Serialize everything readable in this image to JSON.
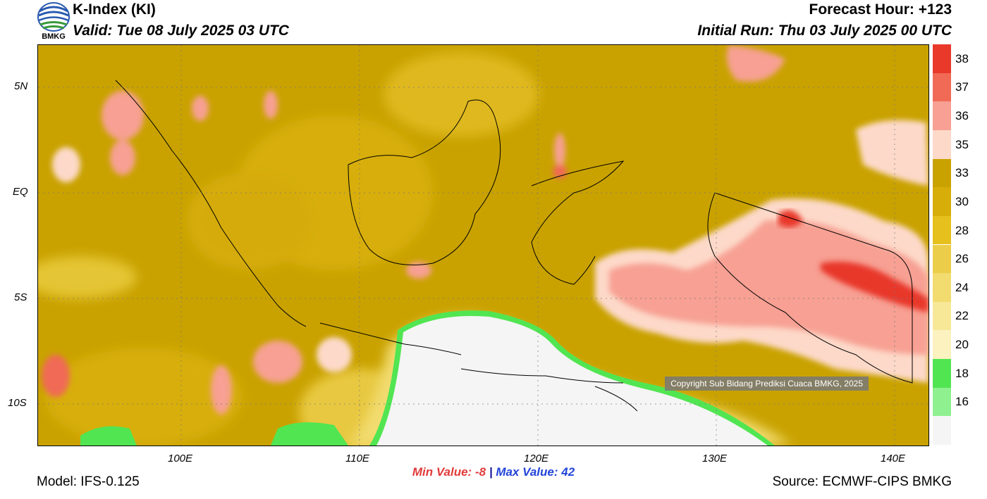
{
  "header": {
    "title": "K-Index (KI)",
    "valid": "Valid: Tue 08 July 2025 03 UTC",
    "forecast_hour": "Forecast Hour: +123",
    "initial_run": "Initial Run: Thu 03 July 2025 00 UTC"
  },
  "logo": {
    "text": "BMKG"
  },
  "axes": {
    "lat_labels": [
      "5N",
      "EQ",
      "5S",
      "10S"
    ],
    "lon_labels": [
      "100E",
      "110E",
      "120E",
      "130E",
      "140E"
    ]
  },
  "stats": {
    "min_label": "Min Value:",
    "min_value": "-8",
    "separator": "|",
    "max_label": "Max Value:",
    "max_value": "42"
  },
  "footer": {
    "model": "Model: IFS-0.125",
    "source": "Source: ECMWF-CIPS BMKG",
    "copyright": "Copyright Sub Bidang Prediksi Cuaca BMKG, 2025"
  },
  "colorbar": {
    "labels": [
      "38",
      "37",
      "36",
      "35",
      "33",
      "30",
      "28",
      "26",
      "24",
      "22",
      "20",
      "18",
      "16"
    ],
    "colors": [
      "#e8392b",
      "#f06a55",
      "#f7a093",
      "#fdd9c9",
      "#c9a200",
      "#d7ad0a",
      "#e6c01c",
      "#eccd4a",
      "#f2dc70",
      "#f7e898",
      "#fbf2c0",
      "#52e552",
      "#8ff08f",
      "#f5f5f5"
    ]
  }
}
